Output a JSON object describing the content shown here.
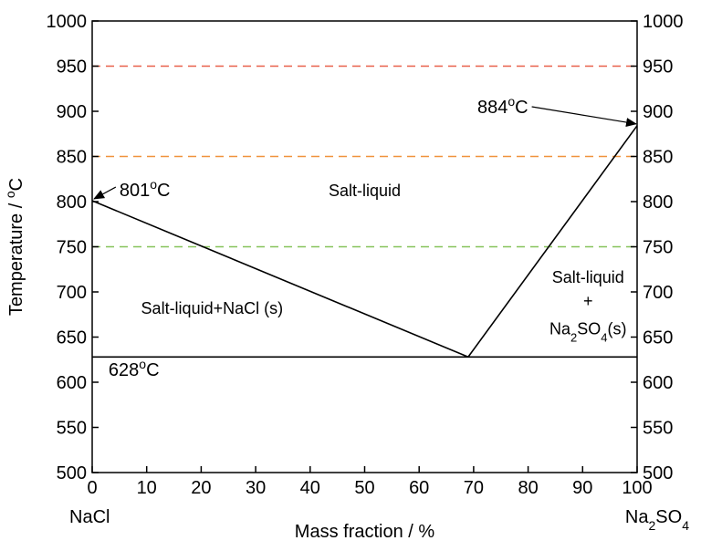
{
  "chart_data": {
    "type": "line",
    "title": "",
    "xlabel": "Mass fraction / %",
    "ylabel_main": "Temperature / ",
    "ylabel_unit": "C",
    "degree_symbol": "o",
    "xlim": [
      0,
      100
    ],
    "ylim": [
      500,
      1000
    ],
    "xticks": [
      0,
      10,
      20,
      30,
      40,
      50,
      60,
      70,
      80,
      90,
      100
    ],
    "yticks": [
      500,
      550,
      600,
      650,
      700,
      750,
      800,
      850,
      900,
      950,
      1000
    ],
    "secondary_y_axis": true,
    "grid": false,
    "x_end_labels": {
      "left": "NaCl",
      "right_base": "Na",
      "right_sub1": "2",
      "right_mid": "SO",
      "right_sub2": "4"
    },
    "series": [
      {
        "points": [
          [
            0,
            801
          ],
          [
            69,
            628
          ]
        ],
        "color": "#000000",
        "style": "solid"
      },
      {
        "points": [
          [
            69,
            628
          ],
          [
            100,
            884
          ]
        ],
        "color": "#000000",
        "style": "solid"
      },
      {
        "points": [
          [
            0,
            628
          ],
          [
            100,
            628
          ]
        ],
        "color": "#000000",
        "style": "solid"
      }
    ],
    "reference_lines": [
      {
        "y": 950,
        "color": "#e8604a",
        "style": "dashed"
      },
      {
        "y": 850,
        "color": "#f0923c",
        "style": "dashed"
      },
      {
        "y": 750,
        "color": "#86c25a",
        "style": "dashed"
      }
    ],
    "annotations": [
      {
        "id": "nacl-melt",
        "value": "801",
        "unit": "C",
        "x": 5,
        "y": 806,
        "arrow_to": [
          0,
          801
        ]
      },
      {
        "id": "na2so4-melt",
        "value": "884",
        "unit": "C",
        "x": 80,
        "y": 898,
        "arrow_to": [
          100,
          884
        ]
      },
      {
        "id": "eutectic",
        "value": "628",
        "unit": "C",
        "x": 3,
        "y": 607
      }
    ],
    "regions": [
      {
        "id": "liquid",
        "text": "Salt-liquid",
        "x": 50,
        "y": 806
      },
      {
        "id": "liquid-nacl",
        "text": "Salt-liquid+NaCl (s)",
        "x": 22,
        "y": 676
      },
      {
        "id": "liquid-na2so4-line1",
        "text": "Salt-liquid",
        "x": 91,
        "y": 710
      },
      {
        "id": "liquid-na2so4-plus",
        "text": "+",
        "x": 91,
        "y": 684
      },
      {
        "id": "liquid-na2so4-line3",
        "text_base": "Na",
        "sub1": "2",
        "text_mid": "SO",
        "sub2": "4",
        "text_end": "(s)",
        "x": 91,
        "y": 653
      }
    ]
  }
}
